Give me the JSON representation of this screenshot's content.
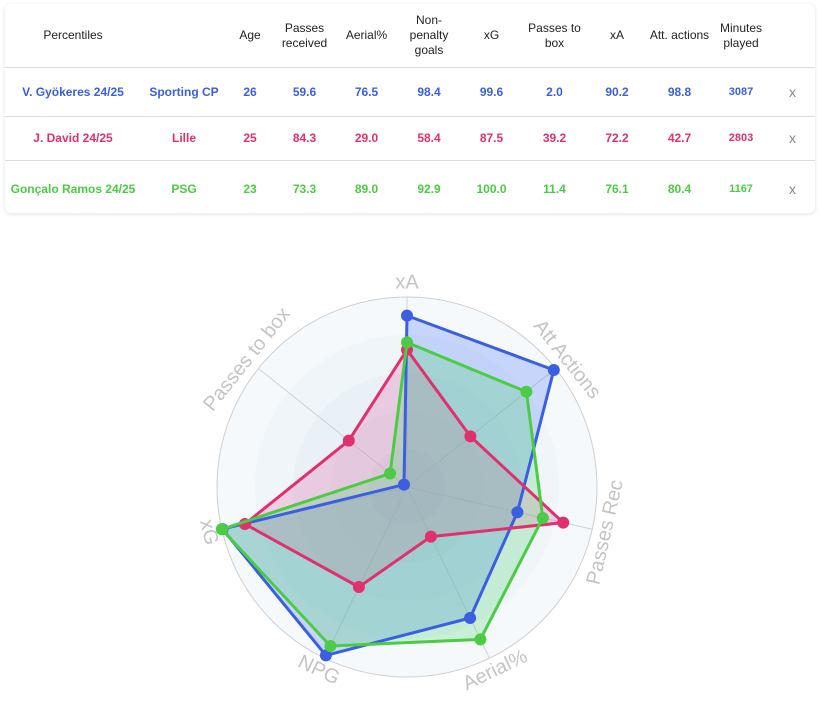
{
  "table": {
    "headers": [
      "Percentiles",
      "",
      "Age",
      "Passes received",
      "Aerial%",
      "Non-penalty goals",
      "xG",
      "Passes to box",
      "xA",
      "Att. actions",
      "Minutes played",
      ""
    ],
    "remove_label": "x",
    "rows": [
      {
        "player": "V. Gyökeres 24/25",
        "team": "Sporting CP",
        "age": "26",
        "passes_received": "59.6",
        "aerial": "76.5",
        "np_goals": "98.4",
        "xg": "99.6",
        "passes_to_box": "2.0",
        "xa": "90.2",
        "att_actions": "98.8",
        "minutes": "3087",
        "color": "#3a5fe0"
      },
      {
        "player": "J. David 24/25",
        "team": "Lille",
        "age": "25",
        "passes_received": "84.3",
        "aerial": "29.0",
        "np_goals": "58.4",
        "xg": "87.5",
        "passes_to_box": "39.2",
        "xa": "72.2",
        "att_actions": "42.7",
        "minutes": "2803",
        "color": "#e0306e"
      },
      {
        "player": "Gonçalo Ramos 24/25",
        "team": "PSG",
        "age": "23",
        "passes_received": "73.3",
        "aerial": "89.0",
        "np_goals": "92.9",
        "xg": "100.0",
        "passes_to_box": "11.4",
        "xa": "76.1",
        "att_actions": "80.4",
        "minutes": "1167",
        "color": "#4ccc44"
      }
    ]
  },
  "chart_data": {
    "type": "radar",
    "axes": [
      "xA",
      "Att Actions",
      "Passes Rec",
      "Aerial%",
      "NPG",
      "xG",
      "Passes to box"
    ],
    "range": [
      0,
      100
    ],
    "rings": 5,
    "series": [
      {
        "color": "#3a5fe0",
        "fill": "rgba(90,130,245,0.30)",
        "values": [
          90.2,
          98.8,
          59.6,
          76.5,
          98.4,
          99.6,
          2.0
        ]
      },
      {
        "color": "#e0306e",
        "fill": "rgba(230,90,160,0.25)",
        "values": [
          72.2,
          42.7,
          84.3,
          29.0,
          58.4,
          87.5,
          39.2
        ]
      },
      {
        "color": "#4ccc44",
        "fill": "rgba(95,215,125,0.30)",
        "values": [
          76.1,
          80.4,
          73.3,
          89.0,
          92.9,
          100.0,
          11.4
        ]
      }
    ]
  }
}
